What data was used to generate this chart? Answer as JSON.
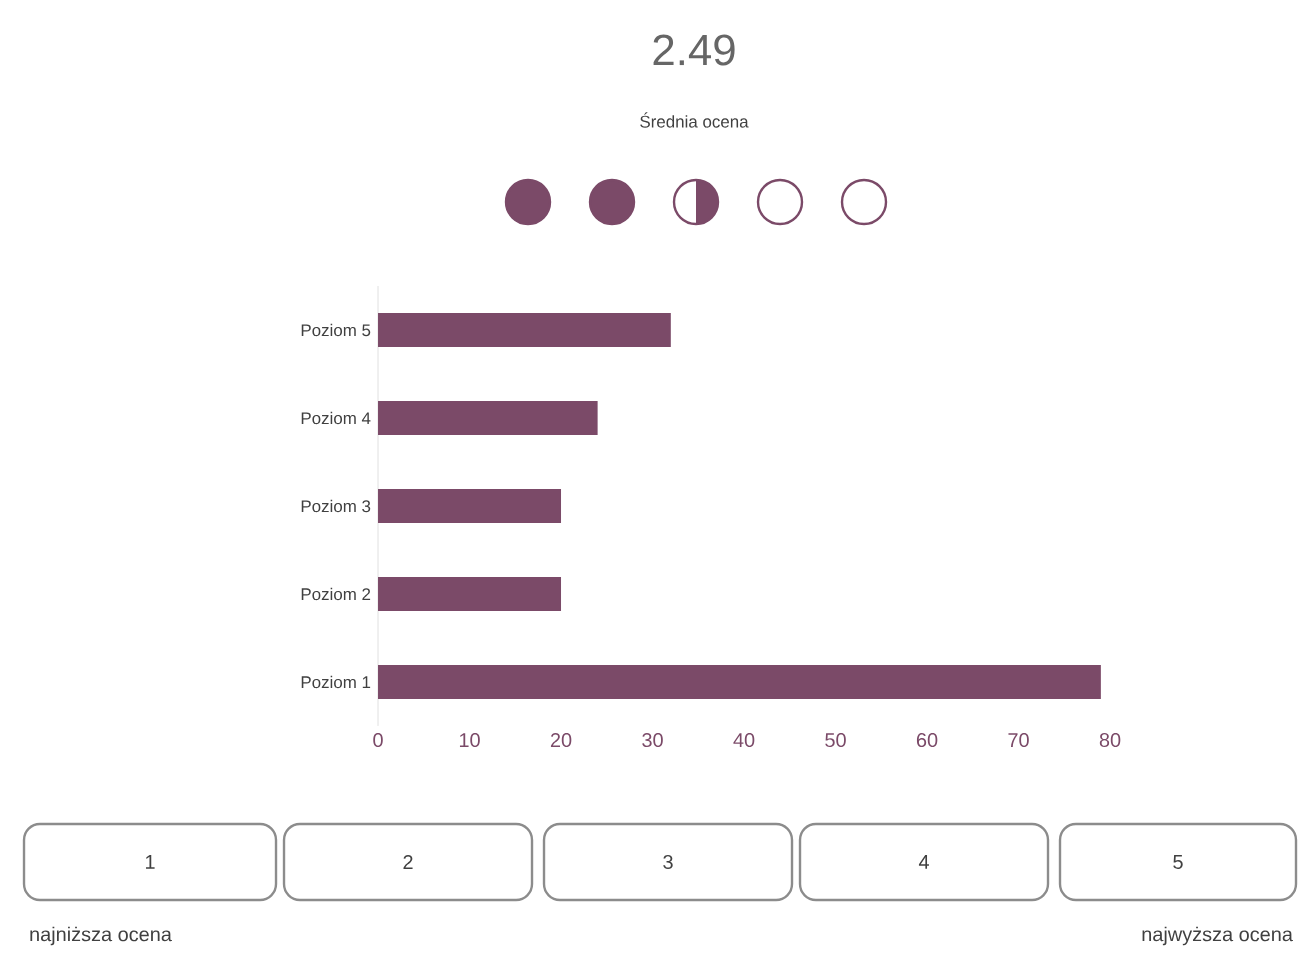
{
  "chart_data": {
    "type": "bar",
    "orientation": "horizontal",
    "title": "2.49",
    "subtitle": "Średnia ocena",
    "categories": [
      "Poziom 5",
      "Poziom 4",
      "Poziom 3",
      "Poziom 2",
      "Poziom 1"
    ],
    "values": [
      32,
      24,
      20,
      20,
      79
    ],
    "color": "#7b4a68",
    "xlim": [
      0,
      80
    ],
    "xticks": [
      0,
      10,
      20,
      30,
      40,
      50,
      60,
      70,
      80
    ],
    "grid": false,
    "annotations": [
      "1",
      "2",
      "3",
      "4",
      "5",
      "najniższa ocena",
      "najwyższa ocena"
    ]
  }
}
